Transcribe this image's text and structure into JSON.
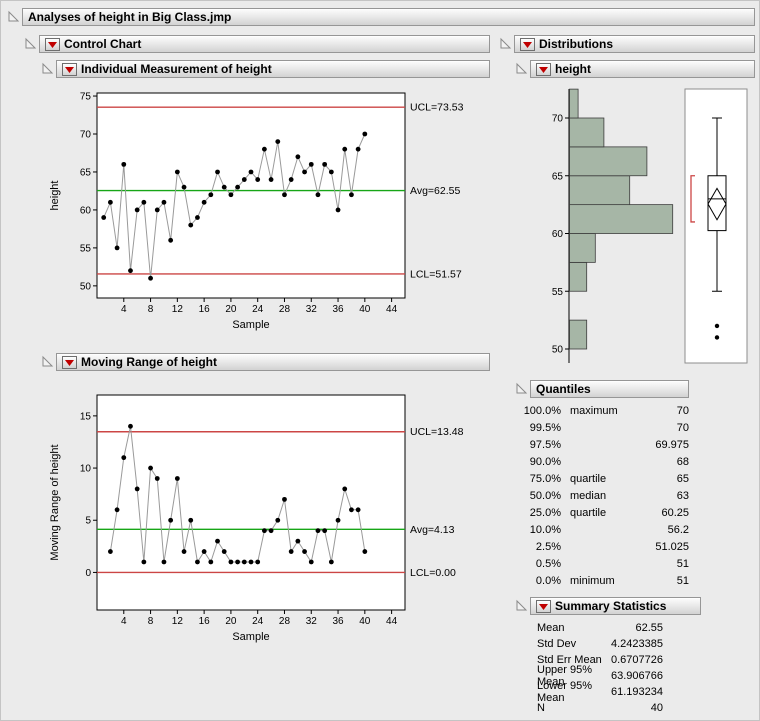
{
  "window_title": "Analyses of height in Big Class.jmp",
  "outline": {
    "control_chart": "Control Chart",
    "individual": "Individual Measurement of height",
    "moving_range": "Moving Range of height",
    "distributions": "Distributions",
    "height": "height",
    "quantiles": "Quantiles",
    "summary": "Summary Statistics"
  },
  "icons": {
    "disclosure_open": "open-triangle",
    "red_triangle_menu": "red-down-triangle"
  },
  "colors": {
    "limit_red": "#cc4645",
    "avg_green": "#17a617",
    "series_line": "#9a9a9a",
    "marker": "#000000",
    "hist_fill": "#a6b6a6",
    "red_triangle": "#c00000"
  },
  "chart_data": [
    {
      "type": "line",
      "title": "Individual Measurement of height",
      "xlabel": "Sample",
      "ylabel": "height",
      "x": [
        1,
        2,
        3,
        4,
        5,
        6,
        7,
        8,
        9,
        10,
        11,
        12,
        13,
        14,
        15,
        16,
        17,
        18,
        19,
        20,
        21,
        22,
        23,
        24,
        25,
        26,
        27,
        28,
        29,
        30,
        31,
        32,
        33,
        34,
        35,
        36,
        37,
        38,
        39,
        40
      ],
      "values": [
        59,
        61,
        55,
        66,
        52,
        60,
        61,
        51,
        60,
        61,
        56,
        65,
        63,
        58,
        59,
        61,
        62,
        65,
        63,
        62,
        63,
        64,
        65,
        64,
        68,
        64,
        69,
        62,
        64,
        67,
        65,
        66,
        62,
        66,
        65,
        60,
        68,
        62,
        68,
        70
      ],
      "limits": [
        {
          "name": "UCL",
          "label": "UCL=73.53",
          "value": 73.53,
          "color": "red"
        },
        {
          "name": "Avg",
          "label": "Avg=62.55",
          "value": 62.55,
          "color": "green"
        },
        {
          "name": "LCL",
          "label": "LCL=51.57",
          "value": 51.57,
          "color": "red"
        }
      ],
      "ylim": [
        48.4,
        75.4
      ],
      "yticks": [
        50,
        55,
        60,
        65,
        70,
        75
      ],
      "xlim": [
        0,
        46
      ],
      "xticks": [
        4,
        8,
        12,
        16,
        20,
        24,
        28,
        32,
        36,
        40,
        44
      ],
      "grid": false,
      "legend": "none"
    },
    {
      "type": "line",
      "title": "Moving Range of height",
      "xlabel": "Sample",
      "ylabel": "Moving Range of height",
      "x": [
        2,
        3,
        4,
        5,
        6,
        7,
        8,
        9,
        10,
        11,
        12,
        13,
        14,
        15,
        16,
        17,
        18,
        19,
        20,
        21,
        22,
        23,
        24,
        25,
        26,
        27,
        28,
        29,
        30,
        31,
        32,
        33,
        34,
        35,
        36,
        37,
        38,
        39,
        40
      ],
      "values": [
        2,
        6,
        11,
        14,
        8,
        1,
        10,
        9,
        1,
        5,
        9,
        2,
        5,
        1,
        2,
        1,
        3,
        2,
        1,
        1,
        1,
        1,
        1,
        4,
        4,
        5,
        7,
        2,
        3,
        2,
        1,
        4,
        4,
        1,
        5,
        8,
        6,
        6,
        2
      ],
      "limits": [
        {
          "name": "UCL",
          "label": "UCL=13.48",
          "value": 13.48,
          "color": "red"
        },
        {
          "name": "Avg",
          "label": "Avg=4.13",
          "value": 4.13,
          "color": "green"
        },
        {
          "name": "LCL",
          "label": "LCL=0.00",
          "value": 0,
          "color": "red"
        }
      ],
      "ylim": [
        -3.6,
        17
      ],
      "yticks": [
        0,
        5,
        10,
        15
      ],
      "xlim": [
        0,
        46
      ],
      "xticks": [
        4,
        8,
        12,
        16,
        20,
        24,
        28,
        32,
        36,
        40,
        44
      ],
      "grid": false,
      "legend": "none"
    },
    {
      "type": "histogram",
      "title": "height",
      "orientation": "horizontal",
      "bin_start": 50,
      "bin_width": 2.5,
      "counts": [
        2,
        0,
        2,
        3,
        12,
        7,
        9,
        4,
        1
      ],
      "axis_ticks": [
        50,
        55,
        60,
        65,
        70
      ],
      "axis_range": [
        48.6,
        72.5
      ],
      "boxplot": {
        "whisker_low": 55,
        "q1": 60.25,
        "median": 63,
        "q3": 65,
        "whisker_high": 70,
        "mean": 62.55,
        "mean_ci": [
          61.193234,
          63.906766
        ],
        "outliers": [
          51,
          52
        ],
        "shortest_half": [
          61,
          65
        ]
      }
    }
  ],
  "quantiles": {
    "title": "Quantiles",
    "rows": [
      {
        "p": "100.0%",
        "label": "maximum",
        "value": "70"
      },
      {
        "p": "99.5%",
        "label": "",
        "value": "70"
      },
      {
        "p": "97.5%",
        "label": "",
        "value": "69.975"
      },
      {
        "p": "90.0%",
        "label": "",
        "value": "68"
      },
      {
        "p": "75.0%",
        "label": "quartile",
        "value": "65"
      },
      {
        "p": "50.0%",
        "label": "median",
        "value": "63"
      },
      {
        "p": "25.0%",
        "label": "quartile",
        "value": "60.25"
      },
      {
        "p": "10.0%",
        "label": "",
        "value": "56.2"
      },
      {
        "p": "2.5%",
        "label": "",
        "value": "51.025"
      },
      {
        "p": "0.5%",
        "label": "",
        "value": "51"
      },
      {
        "p": "0.0%",
        "label": "minimum",
        "value": "51"
      }
    ]
  },
  "summary_statistics": {
    "title": "Summary Statistics",
    "rows": [
      {
        "label": "Mean",
        "value": "62.55"
      },
      {
        "label": "Std Dev",
        "value": "4.2423385"
      },
      {
        "label": "Std Err Mean",
        "value": "0.6707726"
      },
      {
        "label": "Upper 95% Mean",
        "value": "63.906766"
      },
      {
        "label": "Lower 95% Mean",
        "value": "61.193234"
      },
      {
        "label": "N",
        "value": "40"
      }
    ]
  }
}
